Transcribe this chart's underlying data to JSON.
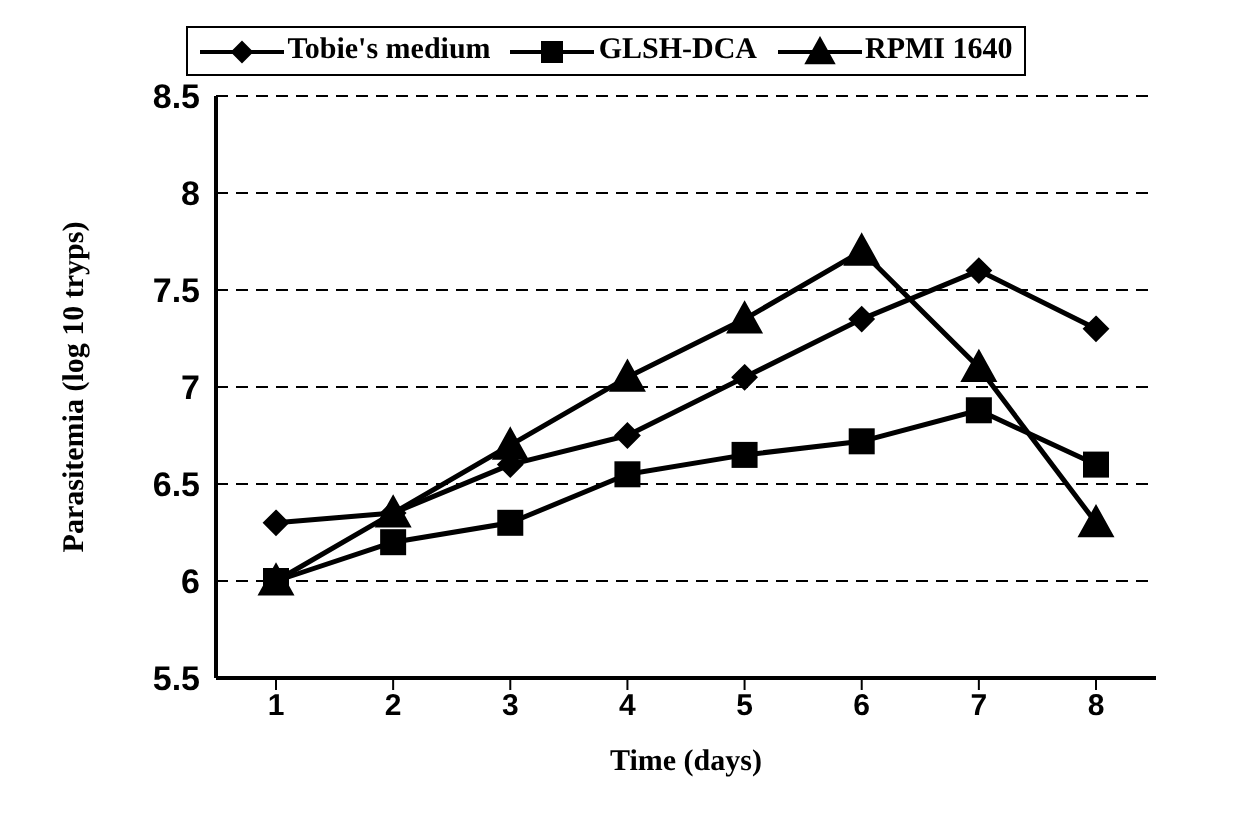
{
  "chart_data": {
    "type": "line",
    "xlabel": "Time (days)",
    "ylabel": "Parasitemia (log 10 tryps)",
    "categories": [
      "1",
      "2",
      "3",
      "4",
      "5",
      "6",
      "7",
      "8"
    ],
    "series": [
      {
        "name": "Tobie's medium",
        "color": "#000000",
        "marker": "diamond",
        "values": [
          6.3,
          6.35,
          6.6,
          6.75,
          7.05,
          7.35,
          7.6,
          7.3
        ]
      },
      {
        "name": "GLSH-DCA",
        "color": "#000000",
        "marker": "square",
        "values": [
          6.0,
          6.2,
          6.3,
          6.55,
          6.65,
          6.72,
          6.88,
          6.6
        ]
      },
      {
        "name": "RPMI 1640",
        "color": "#000000",
        "marker": "triangle",
        "values": [
          6.0,
          6.35,
          6.7,
          7.05,
          7.35,
          7.7,
          7.1,
          6.3
        ]
      }
    ],
    "ylim": [
      5.5,
      8.5
    ],
    "yticks": [
      5.5,
      6,
      6.5,
      7,
      7.5,
      8,
      8.5
    ],
    "grid": "y",
    "legend": "top",
    "line_style": "solid"
  }
}
